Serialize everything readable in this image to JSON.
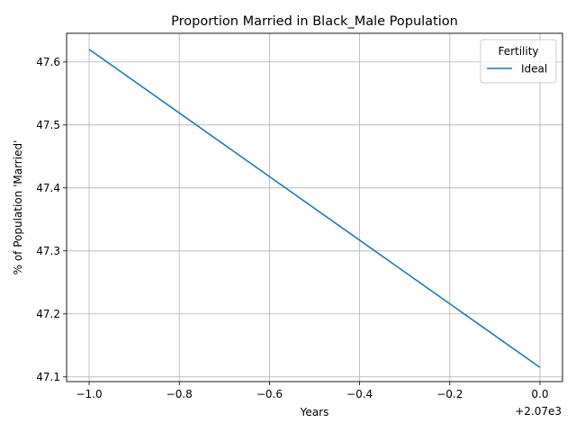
{
  "chart_data": {
    "type": "line",
    "title": "Proportion Married in Black_Male Population",
    "xlabel": "Years",
    "ylabel": "% of Population 'Married'",
    "x_offset_label": "+2.07e3",
    "xlim": [
      -1.05,
      0.05
    ],
    "ylim": [
      47.0925,
      47.6455
    ],
    "x_ticks": [
      -1.0,
      -0.8,
      -0.6,
      -0.4,
      -0.2,
      0.0
    ],
    "x_tick_labels": [
      "−1.0",
      "−0.8",
      "−0.6",
      "−0.4",
      "−0.2",
      "0.0"
    ],
    "y_ticks": [
      47.1,
      47.2,
      47.3,
      47.4,
      47.5,
      47.6
    ],
    "y_tick_labels": [
      "47.1",
      "47.2",
      "47.3",
      "47.4",
      "47.5",
      "47.6"
    ],
    "grid": true,
    "legend": {
      "title": "Fertility",
      "position": "top-right"
    },
    "series": [
      {
        "name": "Ideal",
        "color": "#1f77b4",
        "x": [
          -1.0,
          0.0
        ],
        "y": [
          47.62,
          47.115
        ]
      }
    ]
  }
}
